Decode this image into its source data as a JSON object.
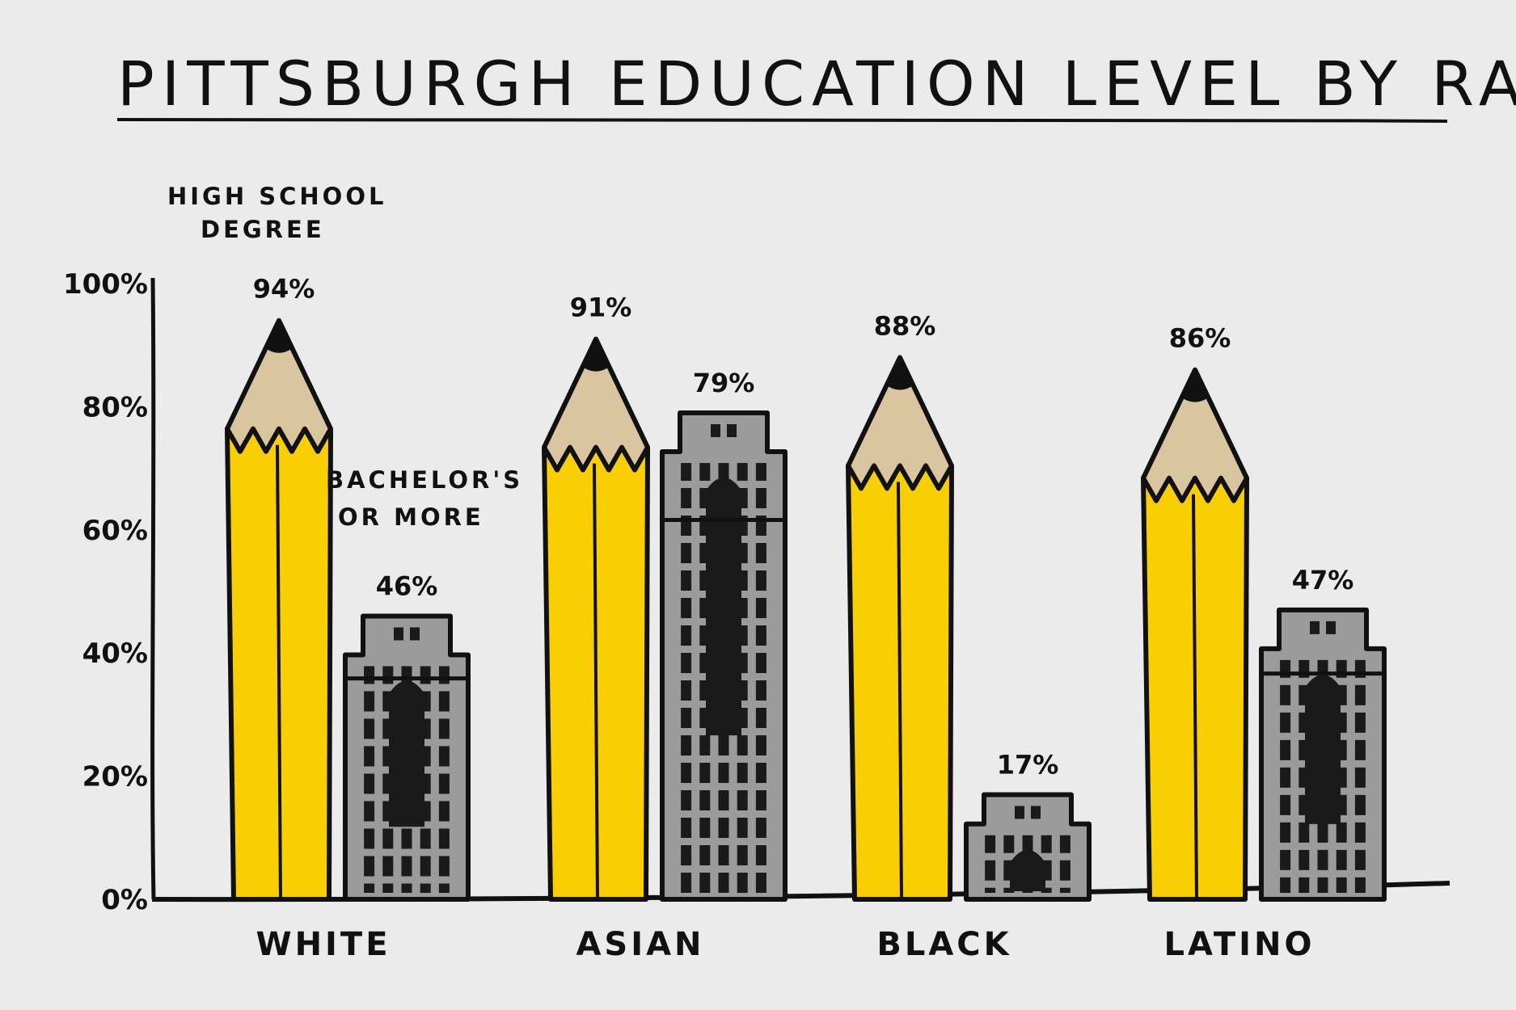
{
  "chart_data": {
    "type": "bar",
    "title": "PITTSBURGH EDUCATION LEVEL BY RACE",
    "xlabel": "",
    "ylabel": "",
    "ylim": [
      0,
      100
    ],
    "yticks": [
      "0%",
      "20%",
      "40%",
      "60%",
      "80%",
      "100%"
    ],
    "categories": [
      "WHITE",
      "ASIAN",
      "BLACK",
      "LATINO"
    ],
    "series": [
      {
        "name": "HIGH SCHOOL DEGREE",
        "values": [
          94,
          91,
          88,
          86
        ],
        "labels": [
          "94%",
          "91%",
          "88%",
          "86%"
        ]
      },
      {
        "name": "BACHELOR'S OR MORE",
        "values": [
          46,
          79,
          17,
          47
        ],
        "labels": [
          "46%",
          "79%",
          "17%",
          "47%"
        ]
      }
    ],
    "series_label_lines": {
      "high_school": [
        "HIGH SCHOOL",
        "DEGREE"
      ],
      "bachelors": [
        "BACHELOR'S",
        "OR MORE"
      ]
    },
    "legend": "inline-annotations",
    "grid": false,
    "colors": {
      "background": "#ebebeb",
      "pencil_body": "#f9cf04",
      "pencil_wood": "#d9c59f",
      "building": "#9b9b9b",
      "building_dark": "#1a1a1a",
      "ink": "#111111"
    }
  }
}
